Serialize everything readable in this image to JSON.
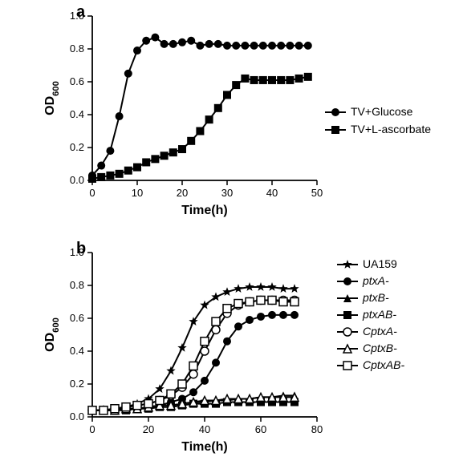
{
  "panel_a": {
    "label": "a",
    "label_fontsize": 20,
    "x_title": "Time(h)",
    "y_title": "OD",
    "y_title_sub": "600",
    "xlim": [
      0,
      50
    ],
    "x_ticks": [
      0,
      10,
      20,
      30,
      40,
      50
    ],
    "ylim": [
      0,
      1.0
    ],
    "y_ticks": [
      0.0,
      0.2,
      0.4,
      0.6,
      0.8,
      1.0
    ],
    "tick_fontsize": 13,
    "axis_title_fontsize": 16,
    "line_color": "#000000",
    "line_width": 2,
    "marker_size": 5,
    "background_color": "#ffffff",
    "series": [
      {
        "name": "TV+Glucose",
        "marker": "circle_filled",
        "x": [
          0,
          2,
          4,
          6,
          8,
          10,
          12,
          14,
          16,
          18,
          20,
          22,
          24,
          26,
          28,
          30,
          32,
          34,
          36,
          38,
          40,
          42,
          44,
          46,
          48
        ],
        "y": [
          0.03,
          0.09,
          0.18,
          0.39,
          0.65,
          0.79,
          0.85,
          0.87,
          0.83,
          0.83,
          0.84,
          0.85,
          0.82,
          0.83,
          0.83,
          0.82,
          0.82,
          0.82,
          0.82,
          0.82,
          0.82,
          0.82,
          0.82,
          0.82,
          0.82
        ]
      },
      {
        "name": "TV+L-ascorbate",
        "marker": "square_filled",
        "x": [
          0,
          2,
          4,
          6,
          8,
          10,
          12,
          14,
          16,
          18,
          20,
          22,
          24,
          26,
          28,
          30,
          32,
          34,
          36,
          38,
          40,
          42,
          44,
          46,
          48
        ],
        "y": [
          0.01,
          0.02,
          0.03,
          0.04,
          0.06,
          0.08,
          0.11,
          0.13,
          0.15,
          0.17,
          0.19,
          0.24,
          0.3,
          0.37,
          0.44,
          0.52,
          0.58,
          0.62,
          0.61,
          0.61,
          0.61,
          0.61,
          0.61,
          0.62,
          0.63
        ]
      }
    ]
  },
  "panel_b": {
    "label": "b",
    "label_fontsize": 20,
    "x_title": "Time(h)",
    "y_title": "OD",
    "y_title_sub": "600",
    "xlim": [
      0,
      80
    ],
    "x_ticks": [
      0,
      20,
      40,
      60,
      80
    ],
    "ylim": [
      0,
      1.0
    ],
    "y_ticks": [
      0.0,
      0.2,
      0.4,
      0.6,
      0.8,
      1.0
    ],
    "tick_fontsize": 13,
    "axis_title_fontsize": 16,
    "line_color": "#000000",
    "line_width": 2,
    "marker_size": 5,
    "background_color": "#ffffff",
    "series": [
      {
        "name": "UA159",
        "marker": "star_filled",
        "x": [
          0,
          4,
          8,
          12,
          16,
          20,
          24,
          28,
          32,
          36,
          40,
          44,
          48,
          52,
          56,
          60,
          64,
          68,
          72
        ],
        "y": [
          0.04,
          0.04,
          0.05,
          0.06,
          0.08,
          0.11,
          0.17,
          0.28,
          0.42,
          0.58,
          0.68,
          0.73,
          0.76,
          0.78,
          0.79,
          0.79,
          0.79,
          0.78,
          0.78
        ]
      },
      {
        "name": "ptxA-",
        "marker": "circle_filled",
        "x": [
          0,
          4,
          8,
          12,
          16,
          20,
          24,
          28,
          32,
          36,
          40,
          44,
          48,
          52,
          56,
          60,
          64,
          68,
          72
        ],
        "y": [
          0.04,
          0.04,
          0.04,
          0.05,
          0.05,
          0.06,
          0.07,
          0.09,
          0.11,
          0.15,
          0.22,
          0.33,
          0.46,
          0.55,
          0.59,
          0.61,
          0.62,
          0.62,
          0.62
        ]
      },
      {
        "name": "ptxB-",
        "marker": "triangle_filled",
        "x": [
          0,
          4,
          8,
          12,
          16,
          20,
          24,
          28,
          32,
          36,
          40,
          44,
          48,
          52,
          56,
          60,
          64,
          68,
          72
        ],
        "y": [
          0.04,
          0.04,
          0.04,
          0.05,
          0.05,
          0.06,
          0.07,
          0.07,
          0.08,
          0.09,
          0.09,
          0.1,
          0.1,
          0.11,
          0.11,
          0.12,
          0.12,
          0.13,
          0.13
        ]
      },
      {
        "name": "ptxAB-",
        "marker": "square_filled",
        "x": [
          0,
          4,
          8,
          12,
          16,
          20,
          24,
          28,
          32,
          36,
          40,
          44,
          48,
          52,
          56,
          60,
          64,
          68,
          72
        ],
        "y": [
          0.04,
          0.04,
          0.04,
          0.04,
          0.05,
          0.05,
          0.06,
          0.06,
          0.07,
          0.08,
          0.08,
          0.08,
          0.09,
          0.09,
          0.09,
          0.09,
          0.09,
          0.09,
          0.09
        ]
      },
      {
        "name": "CptxA-",
        "marker": "circle_open",
        "x": [
          0,
          4,
          8,
          12,
          16,
          20,
          24,
          28,
          32,
          36,
          40,
          44,
          48,
          52,
          56,
          60,
          64,
          68,
          72
        ],
        "y": [
          0.04,
          0.04,
          0.05,
          0.06,
          0.07,
          0.08,
          0.1,
          0.13,
          0.18,
          0.26,
          0.4,
          0.53,
          0.63,
          0.68,
          0.7,
          0.71,
          0.71,
          0.71,
          0.71
        ]
      },
      {
        "name": "CptxB-",
        "marker": "triangle_open",
        "x": [
          0,
          4,
          8,
          12,
          16,
          20,
          24,
          28,
          32,
          36,
          40,
          44,
          48,
          52,
          56,
          60,
          64,
          68,
          72
        ],
        "y": [
          0.04,
          0.04,
          0.04,
          0.05,
          0.05,
          0.06,
          0.07,
          0.07,
          0.08,
          0.09,
          0.1,
          0.1,
          0.11,
          0.11,
          0.11,
          0.12,
          0.12,
          0.12,
          0.12
        ]
      },
      {
        "name": "CptxAB-",
        "marker": "square_open",
        "x": [
          0,
          4,
          8,
          12,
          16,
          20,
          24,
          28,
          32,
          36,
          40,
          44,
          48,
          52,
          56,
          60,
          64,
          68,
          72
        ],
        "y": [
          0.04,
          0.04,
          0.05,
          0.06,
          0.07,
          0.08,
          0.1,
          0.14,
          0.2,
          0.31,
          0.46,
          0.58,
          0.66,
          0.69,
          0.7,
          0.71,
          0.71,
          0.7,
          0.7
        ]
      }
    ]
  }
}
